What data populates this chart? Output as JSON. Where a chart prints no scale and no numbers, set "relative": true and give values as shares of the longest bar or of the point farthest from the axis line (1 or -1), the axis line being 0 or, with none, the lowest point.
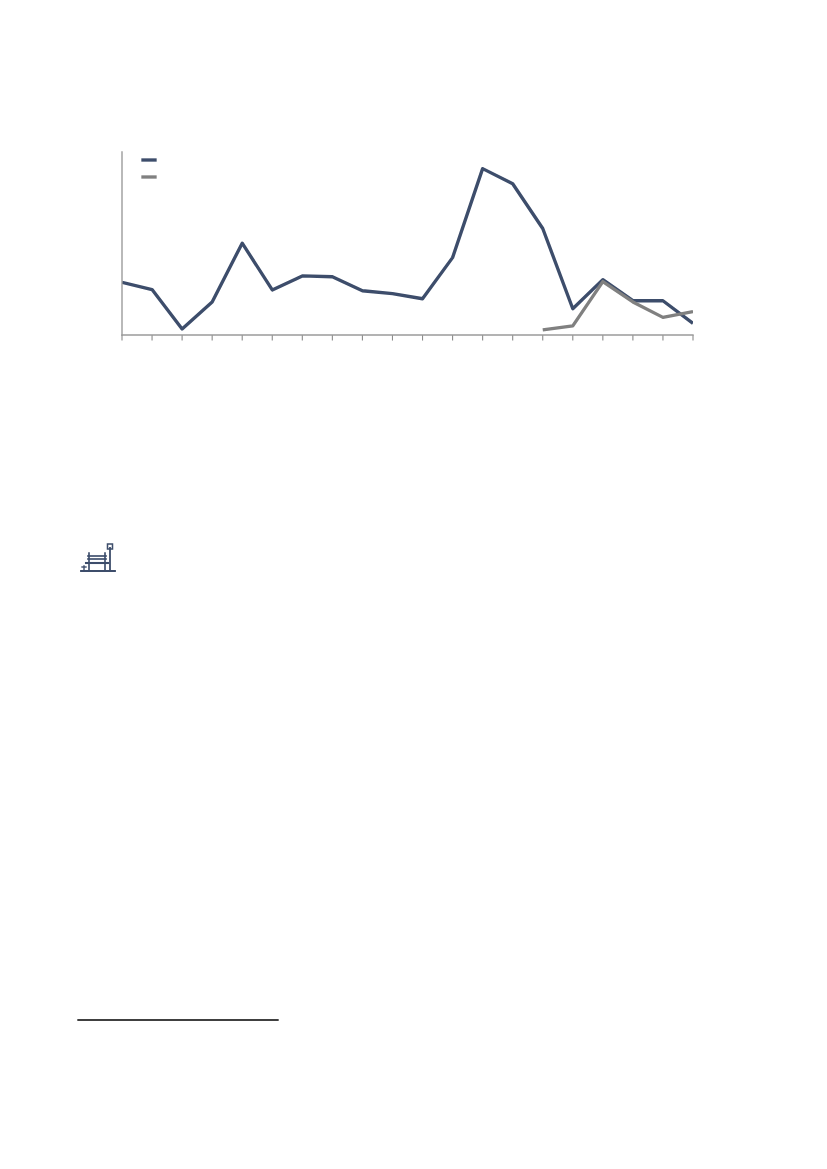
{
  "chart_data": {
    "type": "line",
    "relative": true,
    "categories": [
      null,
      null,
      null,
      null,
      null,
      null,
      null,
      null,
      null,
      null,
      null,
      null,
      null,
      null,
      null,
      null,
      null,
      null,
      null,
      null
    ],
    "series": [
      {
        "color": "#3d4d6b",
        "values": [
          0.317,
          0.273,
          0.036,
          0.199,
          0.552,
          0.271,
          0.355,
          0.35,
          0.266,
          0.249,
          0.218,
          0.465,
          1,
          0.909,
          0.64,
          0.158,
          0.333,
          0.206,
          0.206,
          0.07
        ]
      },
      {
        "color": "#808080",
        "values": [
          null,
          null,
          null,
          null,
          null,
          null,
          null,
          null,
          null,
          null,
          null,
          null,
          null,
          null,
          0.031,
          0.055,
          0.321,
          0.199,
          0.106,
          0.141
        ]
      }
    ]
  }
}
